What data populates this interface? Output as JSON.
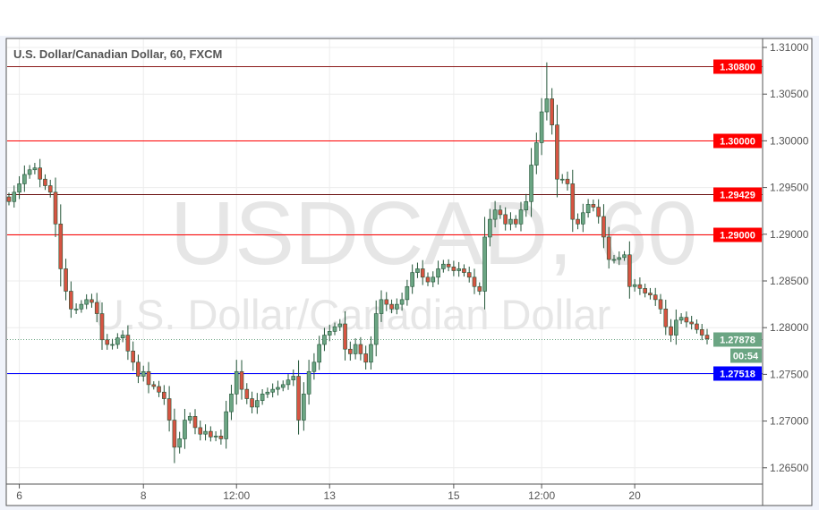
{
  "chart_data": {
    "type": "candlestick",
    "title": "U.S. Dollar/Canadian Dollar, 60, FXCM",
    "watermark": {
      "symbol": "USDCAD, 60",
      "name": "U.S. Dollar/Canadian Dollar"
    },
    "ylim": [
      1.2635,
      1.3115
    ],
    "y_ticks": [
      "1.31000",
      "1.30500",
      "1.30000",
      "1.29500",
      "1.29000",
      "1.28500",
      "1.28000",
      "1.27500",
      "1.27000",
      "1.26500"
    ],
    "y_tick_values": [
      1.31,
      1.305,
      1.3,
      1.295,
      1.29,
      1.285,
      1.28,
      1.275,
      1.27,
      1.265
    ],
    "x_ticks": [
      "6",
      "8",
      "12:00",
      "13",
      "15",
      "12:00",
      "20"
    ],
    "x_tick_candle_index": [
      2,
      26,
      44,
      62,
      86,
      103,
      121
    ],
    "grid": true,
    "closes": [
      1.2935,
      1.2945,
      1.2954,
      1.2964,
      1.2969,
      1.2971,
      1.2959,
      1.2952,
      1.2945,
      1.2911,
      1.2863,
      1.2839,
      1.282,
      1.282,
      1.2825,
      1.283,
      1.2827,
      1.2815,
      1.2787,
      1.2782,
      1.2782,
      1.2789,
      1.2792,
      1.2775,
      1.2763,
      1.2748,
      1.2753,
      1.2739,
      1.2737,
      1.2731,
      1.2724,
      1.2701,
      1.2672,
      1.2681,
      1.2701,
      1.2705,
      1.2693,
      1.2686,
      1.2689,
      1.2683,
      1.2684,
      1.2681,
      1.271,
      1.2729,
      1.2753,
      1.2734,
      1.2724,
      1.2715,
      1.2722,
      1.2729,
      1.2731,
      1.2734,
      1.2736,
      1.2739,
      1.2744,
      1.2748,
      1.2701,
      1.2729,
      1.2753,
      1.2763,
      1.2782,
      1.2792,
      1.2796,
      1.2801,
      1.2804,
      1.2777,
      1.2772,
      1.2782,
      1.2772,
      1.2763,
      1.2782,
      1.2815,
      1.283,
      1.2825,
      1.282,
      1.2825,
      1.283,
      1.2844,
      1.2859,
      1.2863,
      1.2854,
      1.2849,
      1.2854,
      1.2863,
      1.2868,
      1.2865,
      1.2861,
      1.2863,
      1.2859,
      1.2854,
      1.2844,
      1.2839,
      1.2897,
      1.2916,
      1.2926,
      1.2921,
      1.2911,
      1.2916,
      1.2911,
      1.2926,
      1.2935,
      1.2974,
      1.2998,
      1.3031,
      1.3045,
      1.3017,
      1.2959,
      1.2959,
      1.2954,
      1.2916,
      1.2911,
      1.2923,
      1.2932,
      1.2929,
      1.2919,
      1.2897,
      1.2873,
      1.2873,
      1.2875,
      1.2878,
      1.2844,
      1.2846,
      1.2842,
      1.2837,
      1.2835,
      1.283,
      1.282,
      1.2801,
      1.2792,
      1.2808,
      1.2811,
      1.2806,
      1.2804,
      1.2798,
      1.2792,
      1.2788
    ],
    "period_high": 1.3084,
    "period_low": 1.2655,
    "levels": [
      {
        "price": 1.308,
        "label": "1.30800",
        "line_color": "#8b1a1a",
        "label_color": "#ff0000"
      },
      {
        "price": 1.3,
        "label": "1.30000",
        "line_color": "#ff0000",
        "label_color": "#ff0000"
      },
      {
        "price": 1.29429,
        "label": "1.29429",
        "line_color": "#6b1010",
        "label_color": "#ff0000"
      },
      {
        "price": 1.29,
        "label": "1.29000",
        "line_color": "#ff0000",
        "label_color": "#ff0000"
      },
      {
        "price": 1.27518,
        "label": "1.27518",
        "line_color": "#0000ff",
        "label_color": "#0000ff"
      }
    ],
    "last_price": {
      "price": 1.27878,
      "label": "1.27878",
      "countdown": "00:54",
      "color": "#6ba583"
    },
    "colors": {
      "up": "#6ba583",
      "down": "#d75442",
      "border": "#225437"
    }
  }
}
